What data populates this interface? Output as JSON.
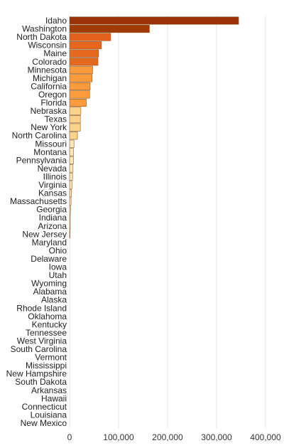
{
  "chart_data": {
    "type": "bar",
    "orientation": "horizontal",
    "categories": [
      "Idaho",
      "Washington",
      "North Dakota",
      "Wisconsin",
      "Maine",
      "Colorado",
      "Minnesota",
      "Michigan",
      "California",
      "Oregon",
      "Florida",
      "Nebraska",
      "Texas",
      "New York",
      "North Carolina",
      "Missouri",
      "Montana",
      "Pennsylvania",
      "Nevada",
      "Illinois",
      "Virginia",
      "Kansas",
      "Massachusetts",
      "Georgia",
      "Indiana",
      "Arizona",
      "New Jersey",
      "Maryland",
      "Ohio",
      "Delaware",
      "Iowa",
      "Utah",
      "Wyoming",
      "Alabama",
      "Alaska",
      "Rhode Island",
      "Oklahoma",
      "Kentucky",
      "Tennessee",
      "West Virginia",
      "South Carolina",
      "Vermont",
      "Mississippi",
      "New Hampshire",
      "South Dakota",
      "Arkansas",
      "Hawaii",
      "Connecticut",
      "Louisiana",
      "New Mexico"
    ],
    "values": [
      345000,
      163000,
      84000,
      65000,
      59000,
      58000,
      47000,
      46000,
      42000,
      41000,
      34000,
      23000,
      22000,
      22000,
      16000,
      9000,
      8000,
      8000,
      7000,
      6000,
      5000,
      4000,
      3000,
      2000,
      1500,
      1500,
      1000,
      0,
      0,
      0,
      0,
      0,
      0,
      0,
      0,
      0,
      0,
      0,
      0,
      0,
      0,
      0,
      0,
      0,
      0,
      0,
      0,
      0,
      0,
      0
    ],
    "xlim": [
      0,
      400000
    ],
    "x_ticks": [
      0,
      100000,
      200000,
      300000,
      400000
    ],
    "x_tick_labels": [
      "0",
      "100,000",
      "200,000",
      "300,000",
      "400,000"
    ],
    "grid": true,
    "colors": [
      "#9c3205",
      "#a23a06",
      "#e4601b",
      "#e8651d",
      "#e6691f",
      "#e56a1f",
      "#fc9a3c",
      "#fc9a3c",
      "#fc9a3c",
      "#fc9a3c",
      "#fc9a3c",
      "#fdd28a",
      "#fdd28a",
      "#fdd28a",
      "#fdd28a",
      "#fde8b8",
      "#fde8b8",
      "#fde8b8",
      "#fde8b8",
      "#fde8b8",
      "#fde8b8",
      "#fde8b8",
      "#fde8b8",
      "#fef3dc",
      "#fef3dc",
      "#fef3dc",
      "#fef3dc",
      "#fef3dc",
      "#fef3dc",
      "#fef3dc",
      "#fef3dc",
      "#fef3dc",
      "#fef3dc",
      "#fef3dc",
      "#fef3dc",
      "#fef3dc",
      "#fef3dc",
      "#fef3dc",
      "#fef3dc",
      "#fef3dc",
      "#fef3dc",
      "#fef3dc",
      "#fef3dc",
      "#fef3dc",
      "#fef3dc",
      "#fef3dc",
      "#fef3dc",
      "#fef3dc",
      "#fef3dc",
      "#fef3dc"
    ]
  }
}
